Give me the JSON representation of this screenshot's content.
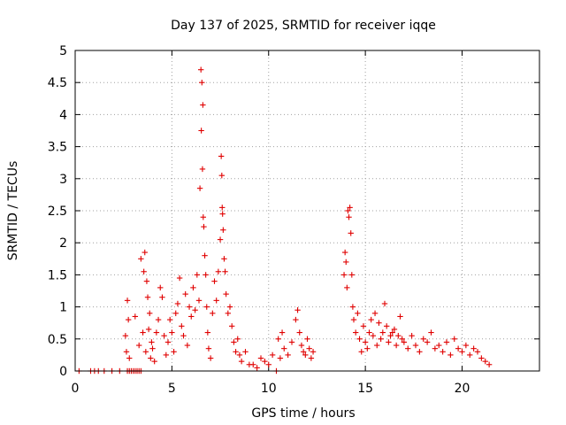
{
  "chart_data": {
    "type": "scatter",
    "title": "Day 137 of 2025, SRMTID for receiver iqqe",
    "xlabel": "GPS time / hours",
    "ylabel": "SRMTID / TECUs",
    "xlim": [
      0,
      24
    ],
    "ylim": [
      0,
      5
    ],
    "xticks": [
      0,
      5,
      10,
      15,
      20
    ],
    "xtick_labels": [
      "0",
      "5",
      "10",
      "15",
      "20"
    ],
    "yticks": [
      0,
      0.5,
      1,
      1.5,
      2,
      2.5,
      3,
      3.5,
      4,
      4.5,
      5
    ],
    "ytick_labels": [
      "0",
      "0.5",
      "1",
      "1.5",
      "2",
      "2.5",
      "3",
      "3.5",
      "4",
      "4.5",
      "5"
    ],
    "grid": true,
    "marker": "plus",
    "marker_color": "#e00000",
    "series": [
      {
        "name": "SRMTID",
        "x": [
          0.2,
          0.8,
          1.0,
          1.2,
          1.5,
          1.9,
          2.3,
          2.7,
          2.8,
          2.9,
          3.0,
          3.1,
          3.2,
          3.3,
          3.4,
          2.6,
          2.65,
          2.7,
          2.75,
          2.8,
          3.1,
          3.3,
          3.4,
          3.5,
          3.55,
          3.6,
          3.65,
          3.7,
          3.75,
          3.8,
          3.85,
          3.9,
          3.95,
          4.0,
          4.1,
          4.2,
          4.3,
          4.4,
          4.5,
          4.6,
          4.7,
          4.8,
          4.9,
          5.0,
          5.1,
          5.2,
          5.3,
          5.4,
          5.5,
          5.6,
          5.7,
          5.8,
          5.9,
          6.0,
          6.1,
          6.2,
          6.3,
          6.4,
          6.45,
          6.5,
          6.52,
          6.55,
          6.58,
          6.6,
          6.62,
          6.65,
          6.7,
          6.75,
          6.8,
          6.85,
          6.9,
          7.0,
          7.1,
          7.2,
          7.3,
          7.4,
          7.5,
          7.55,
          7.58,
          7.6,
          7.62,
          7.65,
          7.7,
          7.75,
          7.8,
          7.9,
          8.0,
          8.1,
          8.2,
          8.3,
          8.4,
          8.5,
          8.6,
          8.8,
          9.0,
          9.2,
          9.4,
          9.6,
          9.8,
          10.0,
          10.2,
          10.4,
          10.5,
          10.6,
          10.7,
          10.8,
          11.0,
          11.2,
          11.4,
          11.5,
          11.6,
          11.7,
          11.8,
          11.9,
          12.0,
          12.1,
          12.2,
          12.3,
          13.9,
          13.95,
          14.0,
          14.05,
          14.1,
          14.15,
          14.2,
          14.25,
          14.3,
          14.35,
          14.4,
          14.5,
          14.6,
          14.7,
          14.8,
          14.9,
          15.0,
          15.1,
          15.2,
          15.3,
          15.4,
          15.5,
          15.6,
          15.7,
          15.8,
          15.9,
          16.0,
          16.1,
          16.2,
          16.3,
          16.4,
          16.5,
          16.6,
          16.7,
          16.8,
          16.9,
          17.0,
          17.2,
          17.4,
          17.6,
          17.8,
          18.0,
          18.2,
          18.4,
          18.6,
          18.8,
          19.0,
          19.2,
          19.4,
          19.6,
          19.8,
          20.0,
          20.2,
          20.4,
          20.6,
          20.8,
          21.0,
          21.2,
          21.4
        ],
        "y": [
          0.0,
          0.0,
          0.0,
          0.0,
          0.0,
          0.0,
          0.0,
          0.0,
          0.0,
          0.0,
          0.0,
          0.0,
          0.0,
          0.0,
          0.0,
          0.55,
          0.3,
          1.1,
          0.8,
          0.2,
          0.85,
          0.4,
          1.75,
          0.6,
          1.55,
          1.85,
          0.3,
          1.4,
          1.15,
          0.65,
          0.9,
          0.2,
          0.45,
          0.35,
          0.15,
          0.6,
          0.8,
          1.3,
          1.15,
          0.55,
          0.25,
          0.45,
          0.8,
          0.6,
          0.3,
          0.9,
          1.05,
          1.45,
          0.7,
          0.55,
          1.2,
          0.4,
          1.0,
          0.85,
          1.3,
          0.95,
          1.5,
          1.1,
          2.85,
          4.7,
          3.75,
          4.5,
          3.15,
          4.15,
          2.4,
          2.25,
          1.8,
          1.5,
          1.0,
          0.6,
          0.35,
          0.2,
          0.9,
          1.4,
          1.1,
          1.55,
          2.05,
          3.35,
          3.05,
          2.55,
          2.45,
          2.2,
          1.75,
          1.55,
          1.2,
          0.9,
          1.0,
          0.7,
          0.45,
          0.3,
          0.5,
          0.25,
          0.15,
          0.3,
          0.1,
          0.1,
          0.05,
          0.2,
          0.15,
          0.1,
          0.25,
          0.0,
          0.5,
          0.2,
          0.6,
          0.35,
          0.25,
          0.45,
          0.8,
          0.95,
          0.6,
          0.4,
          0.3,
          0.25,
          0.5,
          0.35,
          0.2,
          0.3,
          1.5,
          1.85,
          1.7,
          1.3,
          2.5,
          2.4,
          2.55,
          2.15,
          1.5,
          1.0,
          0.8,
          0.6,
          0.9,
          0.5,
          0.3,
          0.7,
          0.45,
          0.35,
          0.6,
          0.8,
          0.55,
          0.9,
          0.4,
          0.75,
          0.5,
          0.6,
          1.05,
          0.7,
          0.45,
          0.55,
          0.6,
          0.65,
          0.4,
          0.55,
          0.85,
          0.5,
          0.45,
          0.35,
          0.55,
          0.4,
          0.3,
          0.5,
          0.45,
          0.6,
          0.35,
          0.4,
          0.3,
          0.45,
          0.25,
          0.5,
          0.35,
          0.3,
          0.4,
          0.25,
          0.35,
          0.3,
          0.2,
          0.15,
          0.1
        ]
      }
    ]
  }
}
